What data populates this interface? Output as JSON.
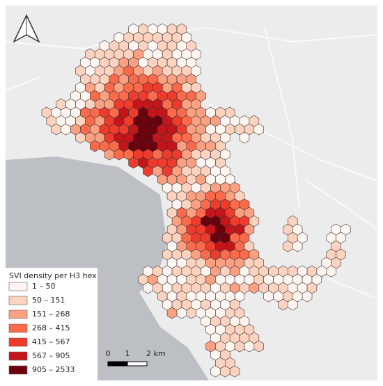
{
  "legend": {
    "title": "SVI density per H3 hex",
    "classes": [
      {
        "label": "1 – 50",
        "color": "#fff5f0"
      },
      {
        "label": "50 – 151",
        "color": "#fdd2bf"
      },
      {
        "label": "151 – 268",
        "color": "#fca082"
      },
      {
        "label": "268 – 415",
        "color": "#fb6a4a"
      },
      {
        "label": "415 – 567",
        "color": "#ef3b2c"
      },
      {
        "label": "567 – 905",
        "color": "#c5151b"
      },
      {
        "label": "905 – 2533",
        "color": "#6b000c"
      }
    ]
  },
  "scale_bar": {
    "labels": [
      "0",
      "1",
      "2 km"
    ]
  }
}
